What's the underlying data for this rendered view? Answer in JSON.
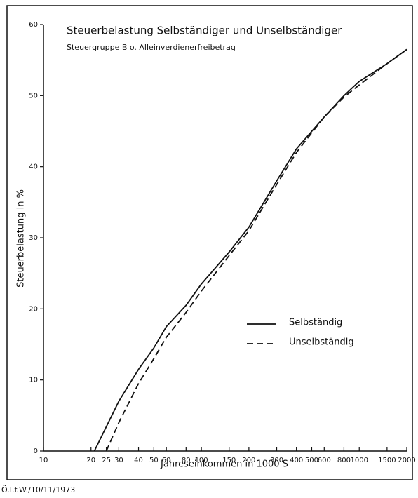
{
  "chart_data": {
    "type": "line",
    "title": "Steuerbelastung Selbständiger und Unselbständiger",
    "subtitle": "Steuergruppe B o. Alleinverdienerfreibetrag",
    "x_label": "Jahreseinkommen in 1000 S",
    "y_label": "Steuerbelastung in %",
    "note": "Ö.I.f.W./10/11/1973",
    "xscale": "log",
    "xlim": [
      10,
      2000
    ],
    "xticks": [
      10,
      20,
      25,
      30,
      40,
      50,
      60,
      80,
      100,
      150,
      200,
      300,
      400,
      500,
      600,
      800,
      1000,
      1500,
      2000
    ],
    "ylim": [
      0,
      60
    ],
    "yticks": [
      0,
      10,
      20,
      30,
      40,
      50,
      60
    ],
    "series": [
      {
        "name": "Selbständig",
        "color": "#111111",
        "dash": "solid",
        "x": [
          21,
          30,
          40,
          50,
          60,
          80,
          100,
          150,
          200,
          300,
          400,
          600,
          800,
          1000,
          1500,
          2000
        ],
        "values": [
          0,
          7,
          11.5,
          14.5,
          17.5,
          20.5,
          23.5,
          28,
          31.5,
          38,
          42.5,
          47,
          50,
          52,
          54.5,
          56.5
        ]
      },
      {
        "name": "Unselbständig",
        "color": "#111111",
        "dash": "dashed",
        "x": [
          25,
          30,
          40,
          50,
          60,
          80,
          100,
          150,
          200,
          300,
          400,
          600,
          800,
          1000,
          1500,
          2000
        ],
        "values": [
          0,
          4,
          9.5,
          13,
          16,
          19.5,
          22.5,
          27.5,
          31,
          37.5,
          42,
          47,
          49.8,
          51.5,
          54.5,
          56.5
        ]
      }
    ]
  }
}
